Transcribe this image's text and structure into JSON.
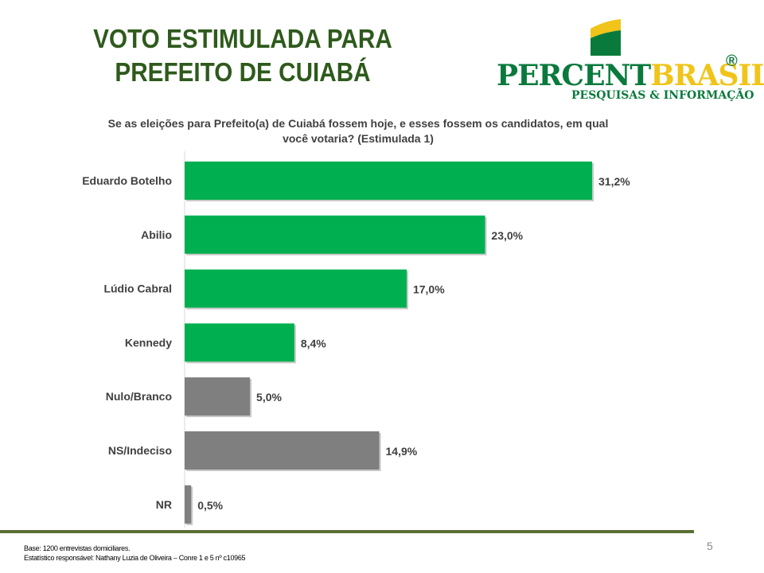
{
  "title_line1": "VOTO ESTIMULADA PARA",
  "title_line2": "PREFEITO DE  CUIABÁ",
  "logo": {
    "name_part1": "PERCENT",
    "name_part2": "BRASIL",
    "reg": "®",
    "tagline": "PESQUISAS & INFORMAÇÃO"
  },
  "question_line1": "Se as eleições para Prefeito(a) de Cuiabá fossem hoje, e esses fossem os candidatos, em qual",
  "question_line2": "você votaria? (Estimulada 1)",
  "chart_data": {
    "type": "bar",
    "orientation": "horizontal",
    "categories": [
      "Eduardo Botelho",
      "Abilio",
      "Lúdio Cabral",
      "Kennedy",
      "Nulo/Branco",
      "NS/Indeciso",
      "NR"
    ],
    "values": [
      31.2,
      23.0,
      17.0,
      8.4,
      5.0,
      14.9,
      0.5
    ],
    "labels": [
      "31,2%",
      "23,0%",
      "17,0%",
      "8,4%",
      "5,0%",
      "14,9%",
      "0,5%"
    ],
    "colors": [
      "#00b050",
      "#00b050",
      "#00b050",
      "#00b050",
      "#7f7f7f",
      "#7f7f7f",
      "#7f7f7f"
    ],
    "xlim": [
      0,
      31.2
    ]
  },
  "footer_line1": "Base: 1200 entrevistas domiciliares.",
  "footer_line2": "Estatístico responsável: Nathany Luzia de Oliveira – Conre 1 e 5 nº c10965",
  "page_number": "5"
}
